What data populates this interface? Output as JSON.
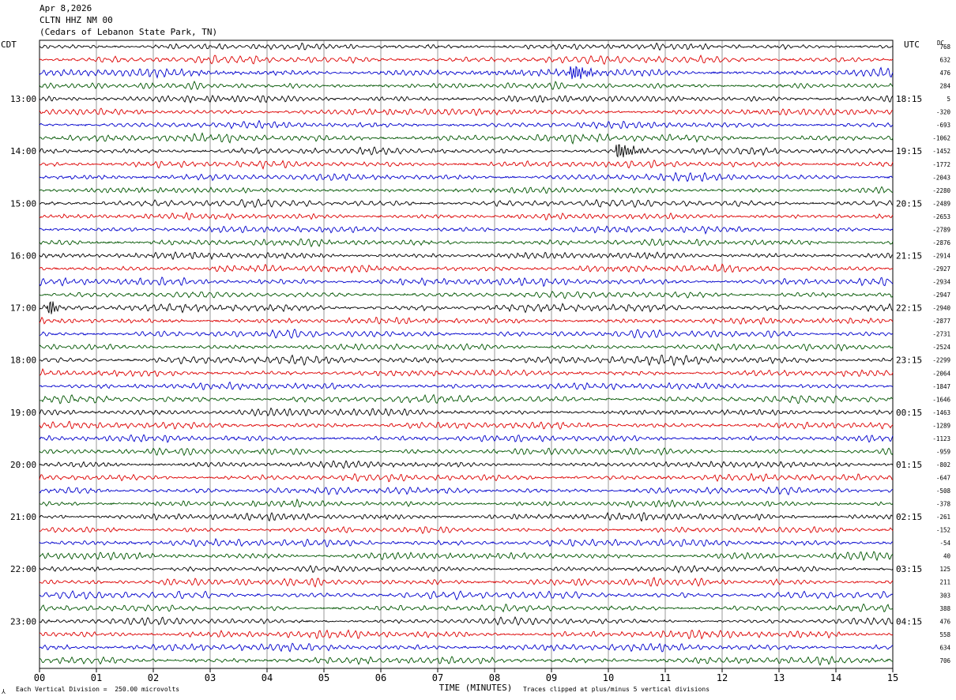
{
  "header": {
    "date": "Apr 8,2026",
    "station": "CLTN HHZ NM 00",
    "location": "(Cedars of Lebanon State Park, TN)"
  },
  "left_timezone": "CDT",
  "right_timezone": "UTC",
  "dc_label": "DC",
  "footer": {
    "division_note": "Each Vertical Division =  250.00 microvolts",
    "clip_note": "Traces clipped at plus/minus 5 vertical divisions",
    "corner_mark": "⅄"
  },
  "colors": {
    "black": "#000000",
    "red": "#dd0000",
    "blue": "#0000cc",
    "green": "#005500",
    "grid": "#555555"
  },
  "chart_data": {
    "type": "line",
    "title": "",
    "xlabel": "TIME (MINUTES)",
    "xlim": [
      0,
      15
    ],
    "x_ticks": [
      "00",
      "01",
      "02",
      "03",
      "04",
      "05",
      "06",
      "07",
      "08",
      "09",
      "10",
      "11",
      "12",
      "13",
      "14",
      "15"
    ],
    "row_minutes": 15,
    "trace_colors_cycle": [
      "black",
      "red",
      "blue",
      "green"
    ],
    "left_hour_labels": [
      "13:00",
      "14:00",
      "15:00",
      "16:00",
      "17:00",
      "18:00",
      "19:00",
      "20:00",
      "21:00",
      "22:00",
      "23:00"
    ],
    "right_hour_labels": [
      "18:15",
      "19:15",
      "20:15",
      "21:15",
      "22:15",
      "23:15",
      "00:15",
      "01:15",
      "02:15",
      "03:15",
      "04:15"
    ],
    "dc_offsets": [
      "768",
      "632",
      "476",
      "284",
      "5",
      "-320",
      "-693",
      "-1062",
      "-1452",
      "-1772",
      "-2043",
      "-2280",
      "-2489",
      "-2653",
      "-2789",
      "-2876",
      "-2914",
      "-2927",
      "-2934",
      "-2947",
      "-2940",
      "-2877",
      "-2731",
      "-2524",
      "-2299",
      "-2064",
      "-1847",
      "-1646",
      "-1463",
      "-1289",
      "-1123",
      "-959",
      "-802",
      "-647",
      "-508",
      "-378",
      "-261",
      "-152",
      "-54",
      "40",
      "125",
      "211",
      "303",
      "388",
      "476",
      "558",
      "634",
      "706"
    ],
    "trace_count": 48,
    "events": [
      {
        "trace": 2,
        "minute": 9.4,
        "note": "burst"
      },
      {
        "trace": 8,
        "minute": 10.2,
        "note": "burst"
      },
      {
        "trace": 20,
        "minute": 0.2,
        "note": "spike"
      }
    ]
  }
}
